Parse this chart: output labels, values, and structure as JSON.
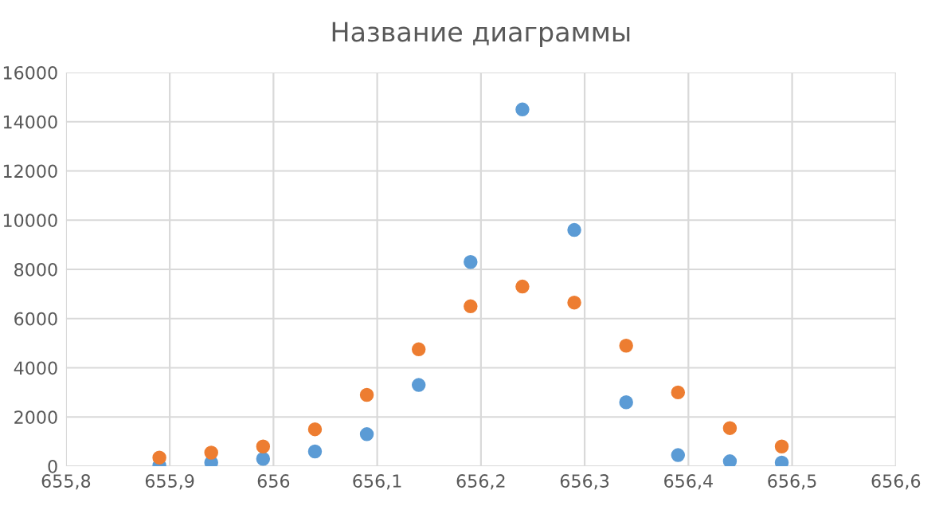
{
  "chart_data": {
    "type": "scatter",
    "title": "Название диаграммы",
    "x": [
      655.89,
      655.94,
      655.99,
      656.04,
      656.09,
      656.14,
      656.19,
      656.24,
      656.29,
      656.34,
      656.39,
      656.44,
      656.49
    ],
    "series": [
      {
        "color": "#5b9bd5",
        "values": [
          30,
          150,
          300,
          600,
          1300,
          3300,
          8300,
          14500,
          9600,
          2600,
          450,
          200,
          150
        ]
      },
      {
        "color": "#ed7d31",
        "values": [
          350,
          550,
          800,
          1500,
          2900,
          4750,
          6500,
          7300,
          6650,
          4900,
          3000,
          1550,
          800
        ]
      }
    ],
    "xlim": [
      655.8,
      656.6
    ],
    "xticks": [
      {
        "value": 655.8,
        "label": "655,8"
      },
      {
        "value": 655.9,
        "label": "655,9"
      },
      {
        "value": 656,
        "label": "656"
      },
      {
        "value": 656.1,
        "label": "656,1"
      },
      {
        "value": 656.2,
        "label": "656,2"
      },
      {
        "value": 656.3,
        "label": "656,3"
      },
      {
        "value": 656.4,
        "label": "656,4"
      },
      {
        "value": 656.5,
        "label": "656,5"
      },
      {
        "value": 656.6,
        "label": "656,6"
      }
    ],
    "ylim": [
      0,
      16000
    ],
    "yticks": [
      0,
      2000,
      4000,
      6000,
      8000,
      10000,
      12000,
      14000,
      16000
    ],
    "grid": true,
    "marker": "circle"
  }
}
